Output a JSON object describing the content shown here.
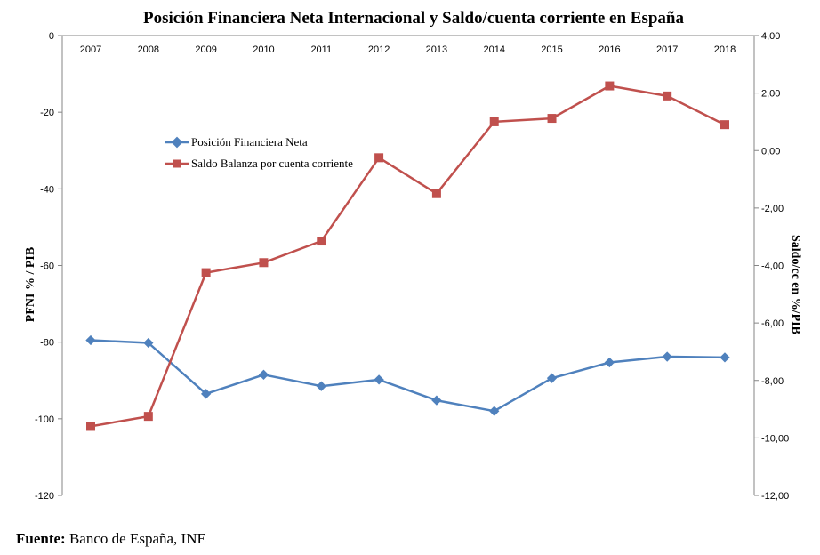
{
  "chart_data": {
    "type": "line",
    "title": "Posición Financiera Neta Internacional y Saldo/cuenta corriente en España",
    "categories": [
      "2007",
      "2008",
      "2009",
      "2010",
      "2011",
      "2012",
      "2013",
      "2014",
      "2015",
      "2016",
      "2017",
      "2018"
    ],
    "y_left": {
      "label": "PFNI % / PIB",
      "ylim": [
        -120,
        0
      ],
      "ticks": [
        "0",
        "-20",
        "-40",
        "-60",
        "-80",
        "-100",
        "-120"
      ],
      "tick_values": [
        0,
        -20,
        -40,
        -60,
        -80,
        -100,
        -120
      ]
    },
    "y_right": {
      "label": "Saldo/cc en %/PIB",
      "ylim": [
        -12,
        4
      ],
      "ticks": [
        "4,00",
        "2,00",
        "0,00",
        "-2,00",
        "-4,00",
        "-6,00",
        "-8,00",
        "-10,00",
        "-12,00"
      ],
      "tick_values": [
        4,
        2,
        0,
        -2,
        -4,
        -6,
        -8,
        -10,
        -12
      ]
    },
    "series": [
      {
        "name": "Posición Financiera Neta",
        "axis": "left",
        "color": "#4F81BD",
        "marker": "diamond",
        "values": [
          -79.5,
          -80.2,
          -93.5,
          -88.5,
          -91.5,
          -89.8,
          -95.2,
          -98.0,
          -89.4,
          -85.3,
          -83.8,
          -84.0
        ]
      },
      {
        "name": "Saldo Balanza por cuenta corriente",
        "axis": "right",
        "color": "#C0504D",
        "marker": "square",
        "values": [
          -9.6,
          -9.25,
          -4.25,
          -3.9,
          -3.15,
          -0.25,
          -1.5,
          1.0,
          1.12,
          2.25,
          1.9,
          0.9
        ]
      }
    ],
    "grid": false,
    "legend": "upper-left-inside"
  },
  "source": {
    "label": "Fuente:",
    "text": "Banco de España, INE"
  }
}
